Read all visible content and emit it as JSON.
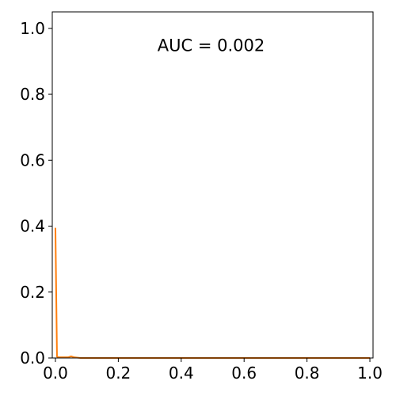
{
  "chart_data": {
    "type": "line",
    "title": "",
    "xlabel": "",
    "ylabel": "",
    "xlim": [
      -0.01,
      1.01
    ],
    "ylim": [
      0.0,
      1.05
    ],
    "grid": false,
    "legend": "none",
    "annotation": "AUC = 0.002",
    "x_ticks": [
      0.0,
      0.2,
      0.4,
      0.6,
      0.8,
      1.0
    ],
    "x_tick_labels": [
      "0.0",
      "0.2",
      "0.4",
      "0.6",
      "0.8",
      "1.0"
    ],
    "y_ticks": [
      0.0,
      0.2,
      0.4,
      0.6,
      0.8,
      1.0
    ],
    "y_tick_labels": [
      "0.0",
      "0.2",
      "0.4",
      "0.6",
      "0.8",
      "1.0"
    ],
    "series": [
      {
        "color": "#ff7f0e",
        "x": [
          0.0,
          0.005,
          0.01,
          0.04,
          0.05,
          0.06,
          0.08,
          1.0
        ],
        "y": [
          0.395,
          0.004,
          0.002,
          0.002,
          0.005,
          0.002,
          0.0,
          0.0
        ]
      }
    ]
  }
}
